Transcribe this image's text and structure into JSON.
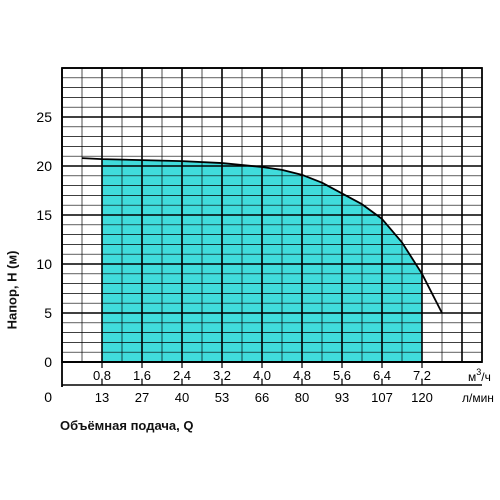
{
  "chart_data": {
    "type": "area",
    "title": "",
    "ylabel": "Напор, Н (м)",
    "xlabel": "Объёмная подача, Q",
    "ylim": [
      0,
      30
    ],
    "yticks": [
      "0",
      "5",
      "10",
      "15",
      "20",
      "25"
    ],
    "x_axis_primary": {
      "unit": "м3/ч",
      "unit_base": "м",
      "unit_sup": "3",
      "unit_rest": "/ч",
      "xlim": [
        0,
        8.4
      ],
      "ticks": [
        "0,8",
        "1,6",
        "2,4",
        "3,2",
        "4,0",
        "4,8",
        "5,6",
        "6,4",
        "7,2"
      ],
      "tick_values": [
        0.8,
        1.6,
        2.4,
        3.2,
        4.0,
        4.8,
        5.6,
        6.4,
        7.2
      ]
    },
    "x_axis_secondary": {
      "unit": "л/мин",
      "ticks": [
        "13",
        "27",
        "40",
        "53",
        "66",
        "80",
        "93",
        "107",
        "120"
      ],
      "zero_label": "0"
    },
    "series": [
      {
        "x": [
          0.4,
          0.8,
          1.6,
          2.4,
          3.2,
          4.0,
          4.4,
          4.8,
          5.2,
          5.6,
          6.0,
          6.4,
          6.8,
          7.2,
          7.6
        ],
        "y": [
          20.8,
          20.7,
          20.6,
          20.5,
          20.3,
          19.9,
          19.6,
          19.1,
          18.3,
          17.2,
          16.1,
          14.6,
          12.2,
          9.0,
          5.0
        ]
      }
    ],
    "shaded_range": [
      0.8,
      7.2
    ],
    "fill_color": "#40dcdc",
    "grid": true
  }
}
